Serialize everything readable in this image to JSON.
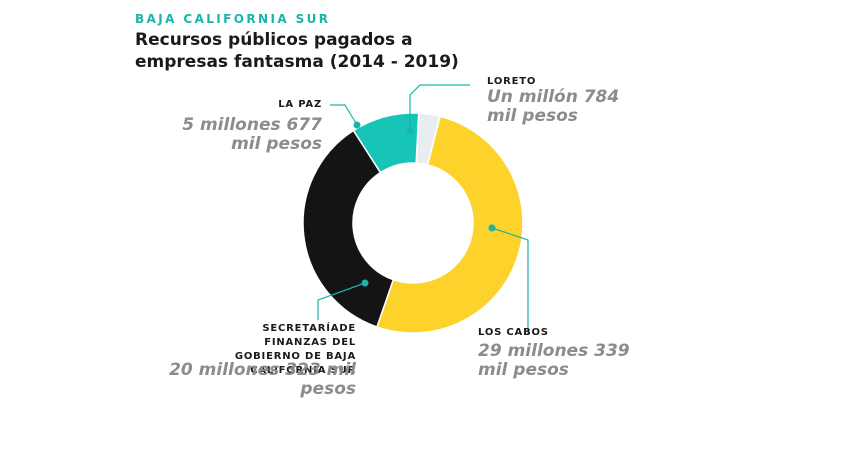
{
  "header": {
    "kicker": "BAJA CALIFORNIA SUR",
    "title": "Recursos públicos pagados a empresas fantasma (2014 - 2019)"
  },
  "chart_data": {
    "type": "pie",
    "title": "Recursos públicos pagados a empresas fantasma (2014 - 2019)",
    "categories": [
      "Loreto",
      "Los Cabos",
      "Secretaríade Finanzas del Gobierno de Baja California Sur",
      "La Paz"
    ],
    "values": [
      1.784,
      29.339,
      20.323,
      5.677
    ],
    "unit": "millones de pesos",
    "colors": [
      "#e9edf0",
      "#fcd22b",
      "#141414",
      "#17c4b8"
    ],
    "slices": [
      {
        "label": "LORETO",
        "value_text": "Un millón 784 mil pesos"
      },
      {
        "label": "LOS CABOS",
        "value_text": "29 millones 339 mil pesos"
      },
      {
        "label": "SECRETARÍADE FINANZAS DEL GOBIERNO DE BAJA CALIFORNIA SUR",
        "value_text": "20 millones 323 mil pesos"
      },
      {
        "label": "LA PAZ",
        "value_text": "5 millones 677 mil pesos"
      }
    ]
  },
  "colors": {
    "accent": "#19b5aa",
    "value_text": "#8c8c8c",
    "leader": "#19b5aa"
  }
}
